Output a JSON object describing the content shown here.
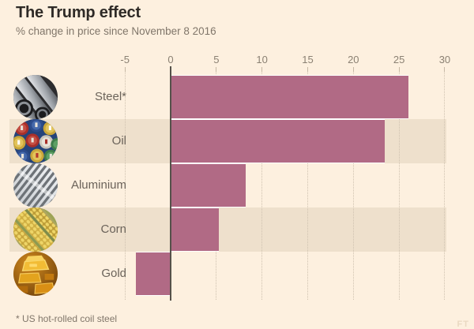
{
  "page": {
    "title": "The Trump effect",
    "subtitle": "% change in price since November 8 2016",
    "footnote": "* US hot-rolled coil steel",
    "watermark": "FT"
  },
  "colors": {
    "background": "#fdf0df",
    "band": "#eee0cc",
    "bar": "#b16a85",
    "zero_line": "#55514a",
    "gridline": "#cfc2b0",
    "title": "#2e2a26",
    "muted": "#80766a",
    "label": "#6b635a",
    "axis": "#8b8173"
  },
  "chart_data": {
    "type": "bar",
    "orientation": "horizontal",
    "title": "The Trump effect",
    "subtitle": "% change in price since November 8 2016",
    "unit": "%",
    "categories": [
      "Steel*",
      "Oil",
      "Aluminium",
      "Corn",
      "Gold"
    ],
    "values": [
      26,
      23.4,
      8.2,
      5.3,
      -3.8
    ],
    "icons": [
      "steel-icon",
      "oil-icon",
      "aluminium-icon",
      "corn-icon",
      "gold-icon"
    ],
    "axis_ticks": [
      -5,
      0,
      5,
      10,
      15,
      20,
      25,
      30
    ],
    "xlim": [
      -5,
      30
    ],
    "grid": "dotted-vertical",
    "banded_rows": [
      1,
      3
    ],
    "legend": "none",
    "footnote": "* US hot-rolled coil steel"
  }
}
